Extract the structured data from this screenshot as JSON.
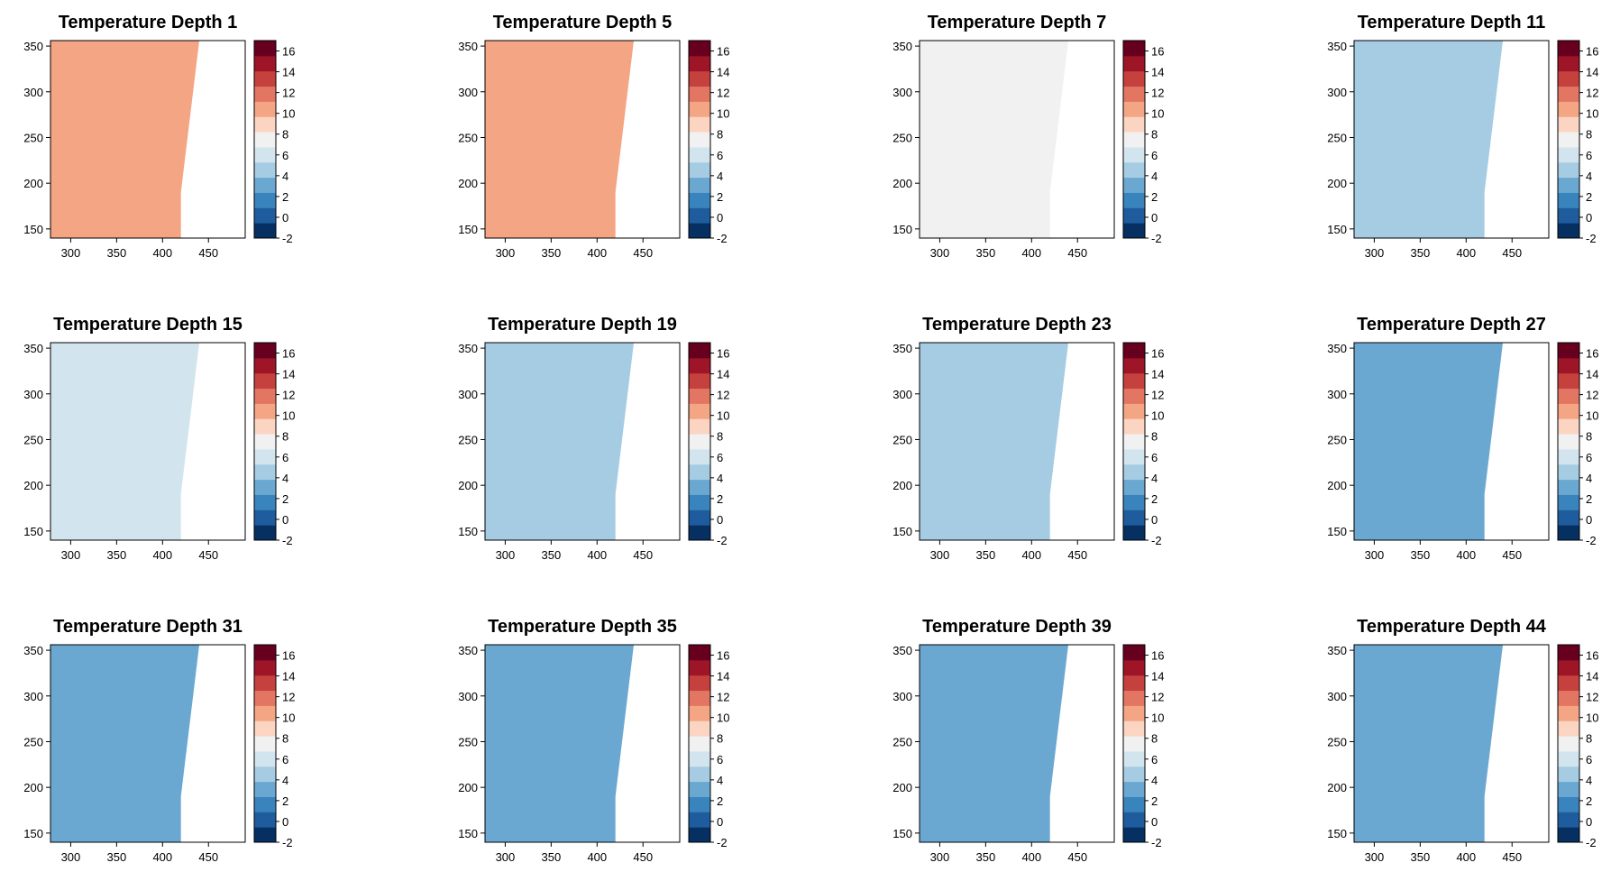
{
  "figure": {
    "colorscale": {
      "ticks": [
        16,
        14,
        12,
        10,
        8,
        6,
        4,
        2,
        0,
        -2
      ],
      "range": [
        -2,
        17
      ],
      "colors": [
        "#053061",
        "#1F5C9D",
        "#3A84BD",
        "#6AA8D1",
        "#A5CCE3",
        "#D2E5EF",
        "#F1F1F1",
        "#FBD5C2",
        "#F4A583",
        "#E27663",
        "#C5413D",
        "#9E1528",
        "#67001F"
      ]
    }
  },
  "chart_data": [
    {
      "type": "heatmap",
      "title": "Temperature Depth 1",
      "xlim": [
        278,
        490
      ],
      "ylim": [
        140,
        356
      ],
      "xticks": [
        300,
        350,
        400,
        450
      ],
      "yticks": [
        150,
        200,
        250,
        300,
        350
      ],
      "dominant_value": 11.0
    },
    {
      "type": "heatmap",
      "title": "Temperature Depth 5",
      "xlim": [
        278,
        490
      ],
      "ylim": [
        140,
        356
      ],
      "xticks": [
        300,
        350,
        400,
        450
      ],
      "yticks": [
        150,
        200,
        250,
        300,
        350
      ],
      "dominant_value": 10.5
    },
    {
      "type": "heatmap",
      "title": "Temperature Depth 7",
      "xlim": [
        278,
        490
      ],
      "ylim": [
        140,
        356
      ],
      "xticks": [
        300,
        350,
        400,
        450
      ],
      "yticks": [
        150,
        200,
        250,
        300,
        350
      ],
      "dominant_value": 7.0
    },
    {
      "type": "heatmap",
      "title": "Temperature Depth 11",
      "xlim": [
        278,
        490
      ],
      "ylim": [
        140,
        356
      ],
      "xticks": [
        300,
        350,
        400,
        450
      ],
      "yticks": [
        150,
        200,
        250,
        300,
        350
      ],
      "dominant_value": 5.0
    },
    {
      "type": "heatmap",
      "title": "Temperature Depth 15",
      "xlim": [
        278,
        490
      ],
      "ylim": [
        140,
        356
      ],
      "xticks": [
        300,
        350,
        400,
        450
      ],
      "yticks": [
        150,
        200,
        250,
        300,
        350
      ],
      "dominant_value": 6.5
    },
    {
      "type": "heatmap",
      "title": "Temperature Depth 19",
      "xlim": [
        278,
        490
      ],
      "ylim": [
        140,
        356
      ],
      "xticks": [
        300,
        350,
        400,
        450
      ],
      "yticks": [
        150,
        200,
        250,
        300,
        350
      ],
      "dominant_value": 5.0
    },
    {
      "type": "heatmap",
      "title": "Temperature Depth 23",
      "xlim": [
        278,
        490
      ],
      "ylim": [
        140,
        356
      ],
      "xticks": [
        300,
        350,
        400,
        450
      ],
      "yticks": [
        150,
        200,
        250,
        300,
        350
      ],
      "dominant_value": 4.0
    },
    {
      "type": "heatmap",
      "title": "Temperature Depth 27",
      "xlim": [
        278,
        490
      ],
      "ylim": [
        140,
        356
      ],
      "xticks": [
        300,
        350,
        400,
        450
      ],
      "yticks": [
        150,
        200,
        250,
        300,
        350
      ],
      "dominant_value": 3.5
    },
    {
      "type": "heatmap",
      "title": "Temperature Depth 31",
      "xlim": [
        278,
        490
      ],
      "ylim": [
        140,
        356
      ],
      "xticks": [
        300,
        350,
        400,
        450
      ],
      "yticks": [
        150,
        200,
        250,
        300,
        350
      ],
      "dominant_value": 3.0
    },
    {
      "type": "heatmap",
      "title": "Temperature Depth 35",
      "xlim": [
        278,
        490
      ],
      "ylim": [
        140,
        356
      ],
      "xticks": [
        300,
        350,
        400,
        450
      ],
      "yticks": [
        150,
        200,
        250,
        300,
        350
      ],
      "dominant_value": 3.0
    },
    {
      "type": "heatmap",
      "title": "Temperature Depth 39",
      "xlim": [
        278,
        490
      ],
      "ylim": [
        140,
        356
      ],
      "xticks": [
        300,
        350,
        400,
        450
      ],
      "yticks": [
        150,
        200,
        250,
        300,
        350
      ],
      "dominant_value": 3.0
    },
    {
      "type": "heatmap",
      "title": "Temperature Depth 44",
      "xlim": [
        278,
        490
      ],
      "ylim": [
        140,
        356
      ],
      "xticks": [
        300,
        350,
        400,
        450
      ],
      "yticks": [
        150,
        200,
        250,
        300,
        350
      ],
      "dominant_value": 3.0
    }
  ]
}
